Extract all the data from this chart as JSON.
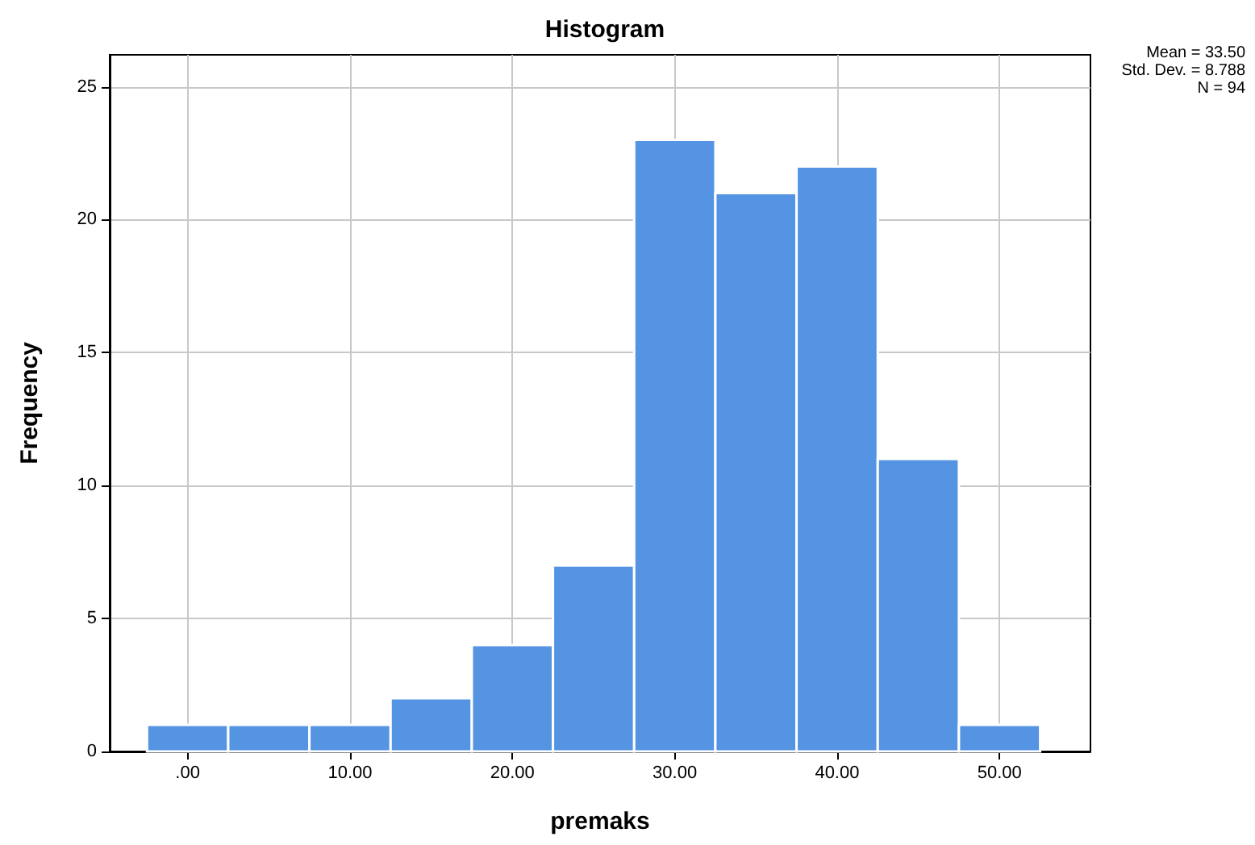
{
  "chart_data": {
    "type": "histogram",
    "title": "Histogram",
    "xlabel": "premaks",
    "ylabel": "Frequency",
    "annotations": [
      "Mean = 33.50",
      "Std. Dev. = 8.788",
      "N = 94"
    ],
    "bins": [
      -2.5,
      2.5,
      7.5,
      12.5,
      17.5,
      22.5,
      27.5,
      32.5,
      37.5,
      42.5,
      47.5,
      52.5
    ],
    "values": [
      1,
      1,
      1,
      2,
      4,
      7,
      23,
      21,
      22,
      11,
      1
    ],
    "color": "#5594e2",
    "xlim": [
      -4.8,
      55.6
    ],
    "ylim": [
      0,
      26.2
    ],
    "xticks": [
      {
        "value": 0,
        "label": ".00"
      },
      {
        "value": 10,
        "label": "10.00"
      },
      {
        "value": 20,
        "label": "20.00"
      },
      {
        "value": 30,
        "label": "30.00"
      },
      {
        "value": 40,
        "label": "40.00"
      },
      {
        "value": 50,
        "label": "50.00"
      }
    ],
    "yticks": [
      0,
      5,
      10,
      15,
      20,
      25
    ],
    "grid": true
  }
}
